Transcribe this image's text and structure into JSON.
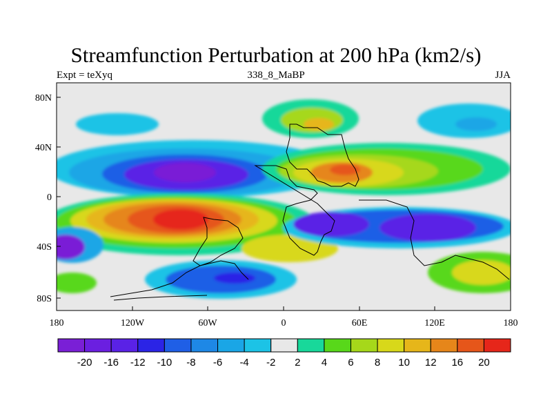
{
  "title": "Streamfunction Perturbation at 200 hPa (km2/s)",
  "subtitle_left": "Expt = teXyq",
  "subtitle_center": "338_8_MaBP",
  "subtitle_right": "JJA",
  "map": {
    "lon_ticks": [
      "180",
      "120W",
      "60W",
      "0",
      "60E",
      "120E",
      "180"
    ],
    "lat_ticks": [
      "80N",
      "40N",
      "0",
      "40S",
      "80S"
    ],
    "background": "#e8e8e8"
  },
  "colorbar": {
    "colors": [
      "#7a1fd6",
      "#6b1fe0",
      "#5a22e6",
      "#2b24e6",
      "#1f5fe6",
      "#1e88e6",
      "#1aa6e6",
      "#1cc3e6",
      "#e8e8e8",
      "#18d89a",
      "#58d81a",
      "#a6d81a",
      "#d8d81a",
      "#e6b61a",
      "#e6861a",
      "#e6561a",
      "#e6261a"
    ],
    "labels": [
      "-20",
      "-16",
      "-12",
      "-10",
      "-8",
      "-6",
      "-4",
      "-2",
      "2",
      "4",
      "6",
      "8",
      "10",
      "12",
      "16",
      "20"
    ]
  }
}
